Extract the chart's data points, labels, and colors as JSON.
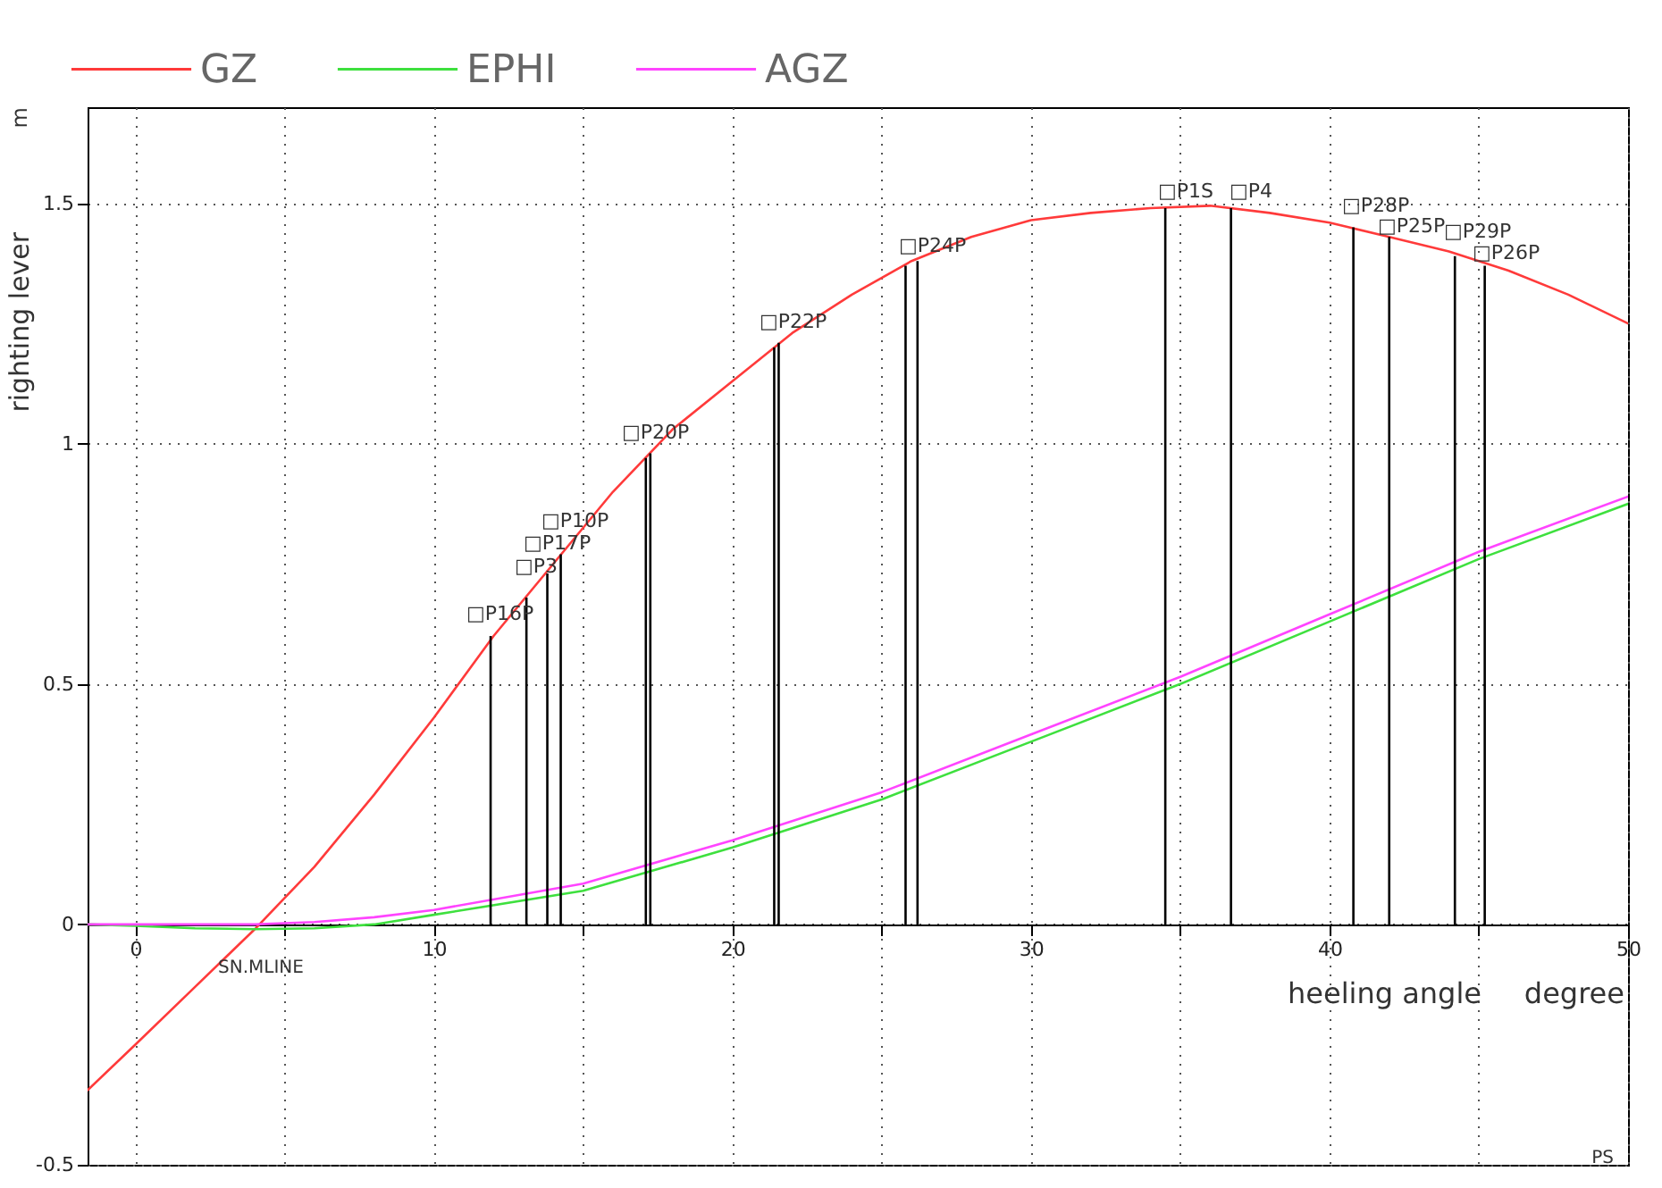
{
  "chart_data": {
    "type": "line",
    "xlabel": "heeling angle",
    "ylabel": "righting lever",
    "xlim": [
      -1.6,
      50
    ],
    "ylim": [
      -0.5,
      1.7
    ],
    "xticks": [
      0,
      {
        "value": 5,
        "label": null
      },
      10,
      {
        "value": 15,
        "label": null
      },
      20,
      {
        "value": 25,
        "label": null
      },
      30,
      {
        "value": 35,
        "label": null
      },
      40,
      {
        "value": 45,
        "label": null
      },
      50
    ],
    "yticks": [
      -0.5,
      0,
      0.5,
      1,
      1.5
    ],
    "grid": true,
    "legend": "top left",
    "series": [
      {
        "name": "GZ",
        "color": "#ff3a3a",
        "x": [
          -1.6,
          0,
          2,
          4,
          6,
          8,
          10,
          12,
          14,
          16,
          18,
          20,
          22,
          24,
          26,
          28,
          30,
          32,
          34,
          36,
          38,
          40,
          42,
          44,
          46,
          48,
          50
        ],
        "values": [
          -0.345,
          -0.25,
          -0.13,
          -0.01,
          0.12,
          0.27,
          0.43,
          0.6,
          0.75,
          0.9,
          1.03,
          1.13,
          1.23,
          1.31,
          1.38,
          1.43,
          1.465,
          1.48,
          1.49,
          1.495,
          1.48,
          1.46,
          1.43,
          1.4,
          1.36,
          1.31,
          1.25
        ]
      },
      {
        "name": "EPHI",
        "color": "#3ee03e",
        "x": [
          -1.6,
          0,
          2,
          4,
          6,
          8,
          10,
          15,
          20,
          25,
          30,
          35,
          40,
          45,
          50
        ],
        "values": [
          0,
          -0.003,
          -0.008,
          -0.01,
          -0.008,
          0,
          0.02,
          0.07,
          0.16,
          0.26,
          0.38,
          0.5,
          0.63,
          0.76,
          0.875
        ]
      },
      {
        "name": "AGZ",
        "color": "#ff44ff",
        "x": [
          -1.6,
          0,
          2,
          4,
          6,
          8,
          10,
          15,
          20,
          25,
          30,
          35,
          40,
          45,
          50
        ],
        "values": [
          0,
          0,
          0,
          0,
          0.005,
          0.015,
          0.03,
          0.085,
          0.175,
          0.275,
          0.395,
          0.515,
          0.645,
          0.775,
          0.89
        ]
      },
      {
        "type": "bar",
        "color": "#000000",
        "x": [
          11.9,
          13.1,
          13.8,
          14.25,
          17.1,
          17.25,
          21.4,
          21.55,
          25.8,
          26.2,
          34.5,
          36.7,
          40.8,
          42,
          44.2,
          45.2
        ],
        "values": [
          0.6,
          0.68,
          0.73,
          0.77,
          0.97,
          0.98,
          1.2,
          1.21,
          1.37,
          1.38,
          1.49,
          1.49,
          1.45,
          1.43,
          1.39,
          1.37
        ]
      }
    ],
    "annotations": [
      "□P16P",
      "□P3",
      "□P17P",
      "□P10P",
      "□P20P",
      "□P22P",
      "□P24P",
      "□P1S",
      "□P4",
      "□P28P",
      "□P25P",
      "□P29P",
      "□P26P",
      "SN.MLINE",
      "degree",
      "m",
      "PS"
    ]
  }
}
